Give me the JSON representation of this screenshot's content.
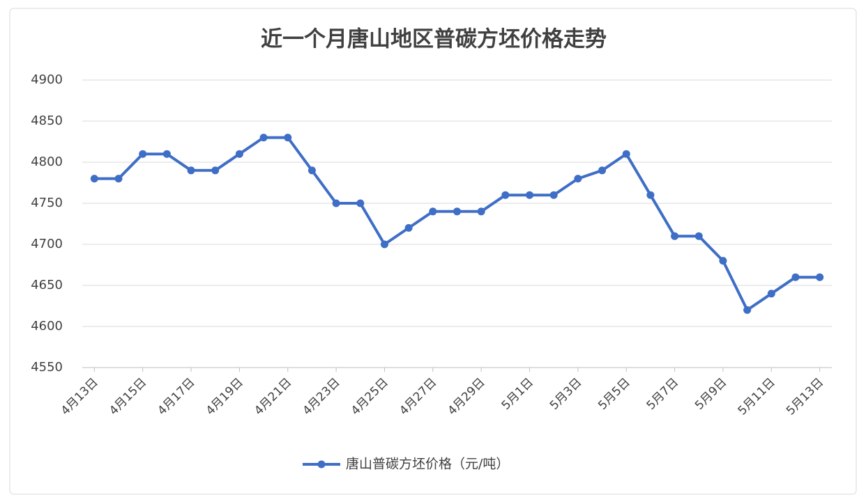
{
  "chart_data": {
    "type": "line",
    "title": "近一个月唐山地区普碳方坯价格走势",
    "categories": [
      "4月13日",
      null,
      "4月15日",
      null,
      "4月17日",
      null,
      "4月19日",
      null,
      "4月21日",
      null,
      "4月23日",
      null,
      "4月25日",
      null,
      "4月27日",
      null,
      "4月29日",
      null,
      "5月1日",
      null,
      "5月3日",
      null,
      "5月5日",
      null,
      "5月7日",
      null,
      "5月9日",
      null,
      "5月11日",
      null,
      "5月13日"
    ],
    "series": [
      {
        "name": "唐山普碳方坯价格（元/吨）",
        "color": "#3e6ec6",
        "values": [
          4780,
          4780,
          4810,
          4810,
          4790,
          4790,
          4810,
          4830,
          4830,
          4790,
          4750,
          4750,
          4700,
          4720,
          4740,
          4740,
          4740,
          4760,
          4760,
          4760,
          4780,
          4790,
          4810,
          4760,
          4710,
          4710,
          4680,
          4620,
          4640,
          4660,
          4660
        ]
      }
    ],
    "ylim": [
      4550,
      4900
    ],
    "yticks": [
      4550,
      4600,
      4650,
      4700,
      4750,
      4800,
      4850,
      4900
    ],
    "grid": true,
    "legend": "bottom"
  }
}
